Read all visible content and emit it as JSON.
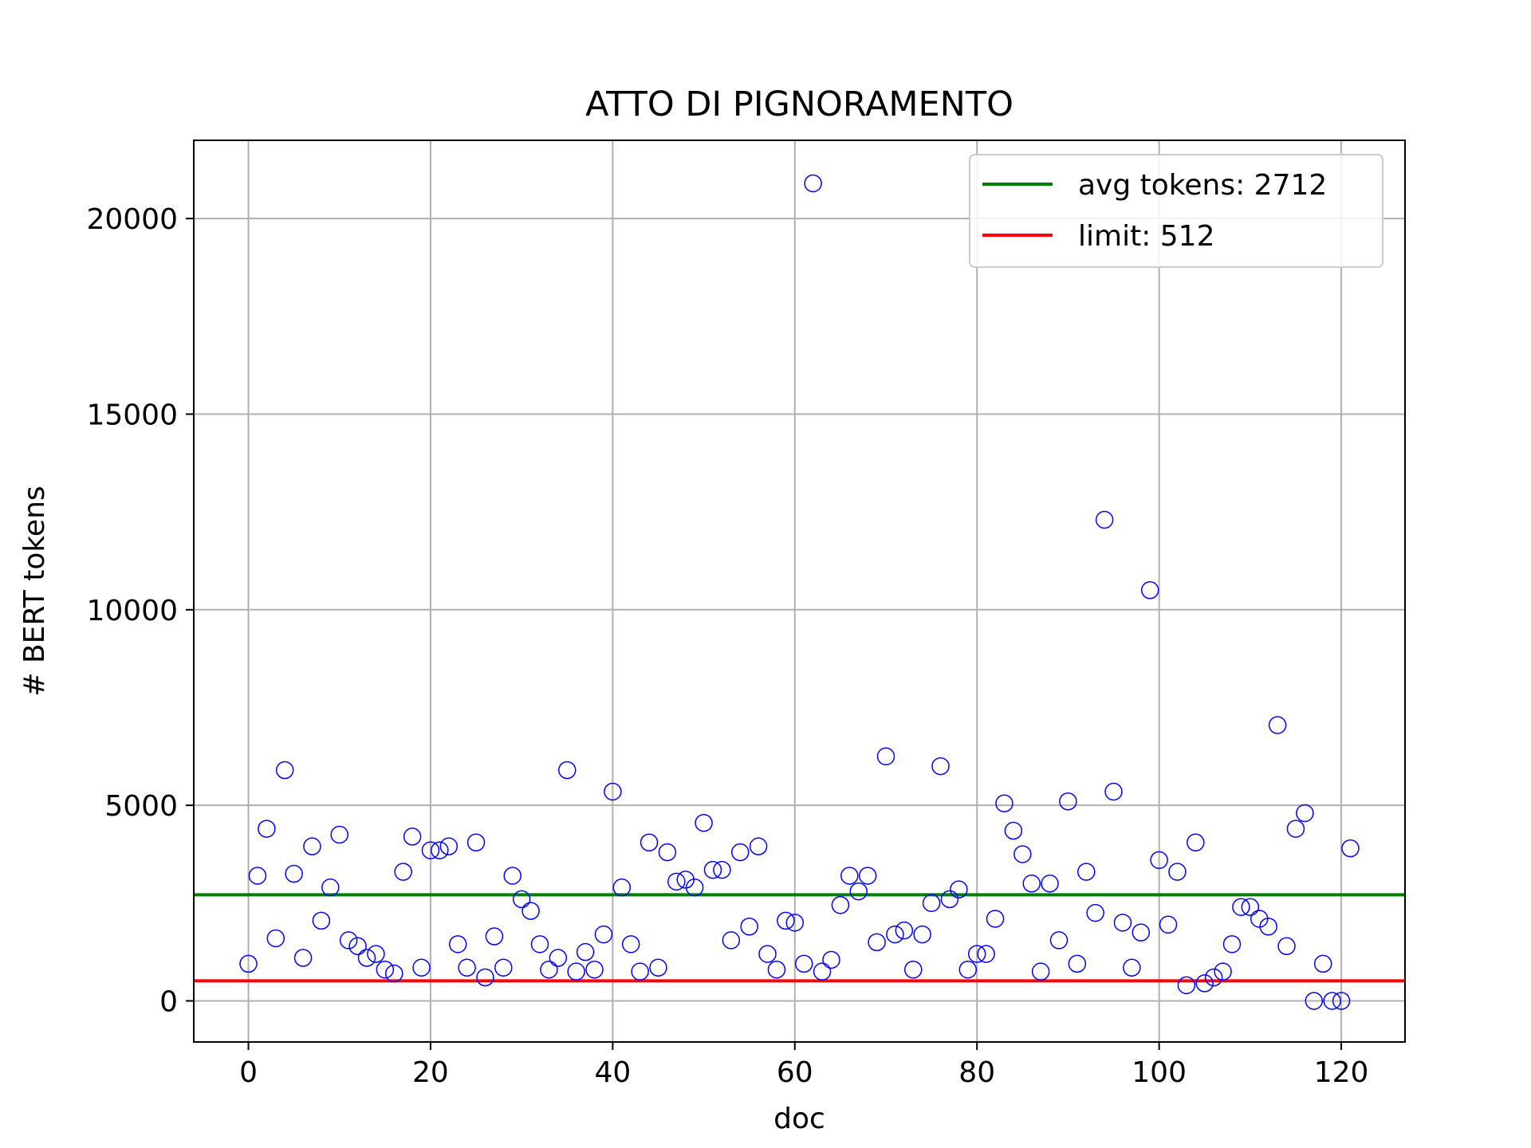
{
  "chart_data": {
    "type": "scatter",
    "title": "ATTO DI PIGNORAMENTO",
    "xlabel": "doc",
    "ylabel": "# BERT tokens",
    "xlim": [
      -6,
      127
    ],
    "ylim": [
      -1050,
      22000
    ],
    "xticks": [
      0,
      20,
      40,
      60,
      80,
      100,
      120
    ],
    "yticks": [
      0,
      5000,
      10000,
      15000,
      20000
    ],
    "grid": true,
    "legend_position": "top-right",
    "colors": {
      "points": "#0000ff",
      "avg": "#008000",
      "limit": "#ff0000",
      "grid": "#b0b0b0"
    },
    "series": [
      {
        "kind": "scatter",
        "marker": "open-circle",
        "x": [
          0,
          1,
          2,
          3,
          4,
          5,
          6,
          7,
          8,
          9,
          10,
          11,
          12,
          13,
          14,
          15,
          16,
          17,
          18,
          19,
          20,
          21,
          22,
          23,
          24,
          25,
          26,
          27,
          28,
          29,
          30,
          31,
          32,
          33,
          34,
          35,
          36,
          37,
          38,
          39,
          40,
          41,
          42,
          43,
          44,
          45,
          46,
          47,
          48,
          49,
          50,
          51,
          52,
          53,
          54,
          55,
          56,
          57,
          58,
          59,
          60,
          61,
          62,
          63,
          64,
          65,
          66,
          67,
          68,
          69,
          70,
          71,
          72,
          73,
          74,
          75,
          76,
          77,
          78,
          79,
          80,
          81,
          82,
          83,
          84,
          85,
          86,
          87,
          88,
          89,
          90,
          91,
          92,
          93,
          94,
          95,
          96,
          97,
          98,
          99,
          100,
          101,
          102,
          103,
          104,
          105,
          106,
          107,
          108,
          109,
          110,
          111,
          112,
          113,
          114,
          115,
          116,
          117,
          118,
          119,
          120,
          121
        ],
        "y": [
          950,
          3200,
          4400,
          1600,
          5900,
          3250,
          1100,
          3950,
          2050,
          2900,
          4250,
          1550,
          1400,
          1100,
          1200,
          800,
          700,
          3300,
          4200,
          850,
          3850,
          3850,
          3950,
          1450,
          850,
          4050,
          600,
          1650,
          850,
          3200,
          2600,
          2300,
          1450,
          800,
          1100,
          5900,
          750,
          1250,
          800,
          1700,
          5350,
          2900,
          1450,
          750,
          4050,
          850,
          3800,
          3050,
          3100,
          2900,
          4550,
          3350,
          3350,
          1550,
          3800,
          1900,
          3950,
          1200,
          800,
          2050,
          2000,
          950,
          20900,
          750,
          1050,
          2450,
          3200,
          2800,
          3200,
          1500,
          6250,
          1700,
          1800,
          800,
          1700,
          2500,
          6000,
          2600,
          2850,
          800,
          1200,
          1200,
          2100,
          5050,
          4350,
          3750,
          3000,
          750,
          3000,
          1550,
          5100,
          950,
          3300,
          2250,
          12300,
          5350,
          2000,
          850,
          1750,
          10500,
          3600,
          1950,
          3300,
          400,
          4050,
          450,
          600,
          750,
          1450,
          2400,
          2400,
          2100,
          1900,
          7050,
          1400,
          4400,
          4800,
          0,
          950,
          0,
          0,
          3900
        ]
      },
      {
        "kind": "hline",
        "name": "avg tokens: 2712",
        "y": 2712
      },
      {
        "kind": "hline",
        "name": "limit: 512",
        "y": 512
      }
    ]
  }
}
